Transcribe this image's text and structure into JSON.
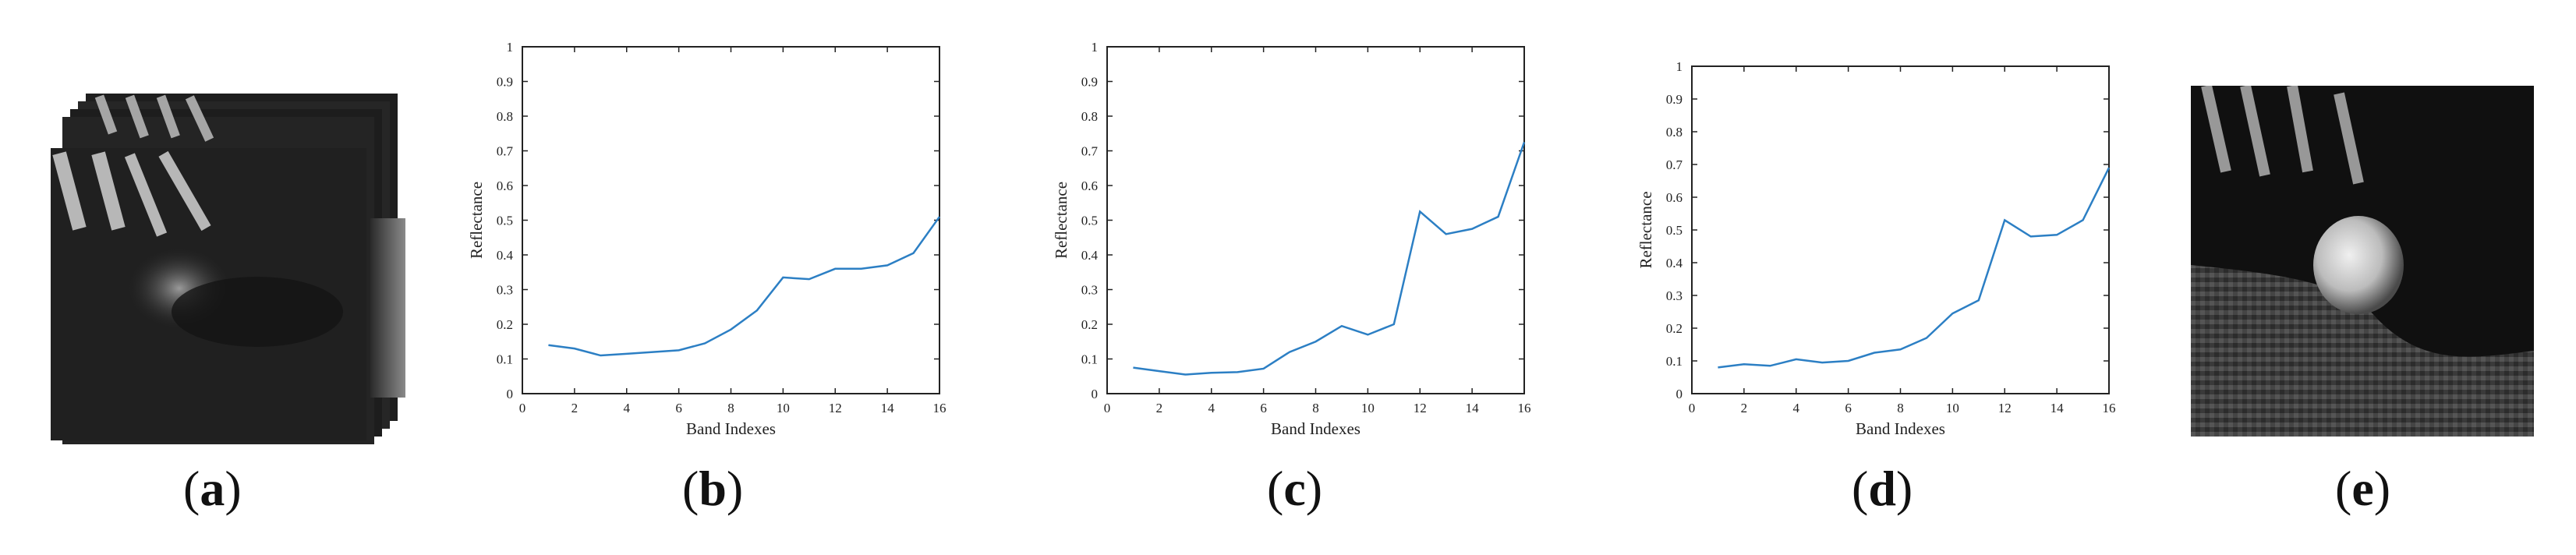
{
  "labels": {
    "a": {
      "open": "(",
      "letter": "a",
      "close": ")"
    },
    "b": {
      "open": "(",
      "letter": "b",
      "close": ")"
    },
    "c": {
      "open": "(",
      "letter": "c",
      "close": ")"
    },
    "d": {
      "open": "(",
      "letter": "d",
      "close": ")"
    },
    "e": {
      "open": "(",
      "letter": "e",
      "close": ")"
    }
  },
  "colors": {
    "series": "#2c7fc4",
    "axis": "#222222"
  },
  "chart_data": [
    {
      "type": "line",
      "panel": "b",
      "xlabel": "Band Indexes",
      "ylabel": "Reflectance",
      "xlim": [
        0,
        16
      ],
      "ylim": [
        0,
        1
      ],
      "xticks": [
        0,
        2,
        4,
        6,
        8,
        10,
        12,
        14,
        16
      ],
      "yticks": [
        "0",
        "0.1",
        "0.2",
        "0.3",
        "0.4",
        "0.5",
        "0.6",
        "0.7",
        "0.8",
        "0.9",
        "1"
      ],
      "x": [
        1,
        2,
        3,
        4,
        5,
        6,
        7,
        8,
        9,
        10,
        11,
        12,
        13,
        14,
        15,
        16
      ],
      "values": [
        0.14,
        0.13,
        0.11,
        0.115,
        0.12,
        0.125,
        0.145,
        0.185,
        0.24,
        0.335,
        0.33,
        0.36,
        0.36,
        0.37,
        0.405,
        0.51
      ]
    },
    {
      "type": "line",
      "panel": "c",
      "xlabel": "Band Indexes",
      "ylabel": "Reflectance",
      "xlim": [
        0,
        16
      ],
      "ylim": [
        0,
        1
      ],
      "xticks": [
        0,
        2,
        4,
        6,
        8,
        10,
        12,
        14,
        16
      ],
      "yticks": [
        "0",
        "0.1",
        "0.2",
        "0.3",
        "0.4",
        "0.5",
        "0.6",
        "0.7",
        "0.8",
        "0.9",
        "1"
      ],
      "x": [
        1,
        2,
        3,
        4,
        5,
        6,
        7,
        8,
        9,
        10,
        11,
        12,
        13,
        14,
        15,
        16
      ],
      "values": [
        0.075,
        0.065,
        0.055,
        0.06,
        0.062,
        0.072,
        0.12,
        0.15,
        0.195,
        0.17,
        0.2,
        0.525,
        0.46,
        0.475,
        0.51,
        0.725
      ]
    },
    {
      "type": "line",
      "panel": "d",
      "xlabel": "Band Indexes",
      "ylabel": "Reflectance",
      "xlim": [
        0,
        16
      ],
      "ylim": [
        0,
        1
      ],
      "xticks": [
        0,
        2,
        4,
        6,
        8,
        10,
        12,
        14,
        16
      ],
      "yticks": [
        "0",
        "0.1",
        "0.2",
        "0.3",
        "0.4",
        "0.5",
        "0.6",
        "0.7",
        "0.8",
        "0.9",
        "1"
      ],
      "x": [
        1,
        2,
        3,
        4,
        5,
        6,
        7,
        8,
        9,
        10,
        11,
        12,
        13,
        14,
        15,
        16
      ],
      "values": [
        0.08,
        0.09,
        0.085,
        0.105,
        0.095,
        0.1,
        0.125,
        0.135,
        0.17,
        0.245,
        0.285,
        0.53,
        0.48,
        0.485,
        0.53,
        0.69
      ]
    }
  ]
}
